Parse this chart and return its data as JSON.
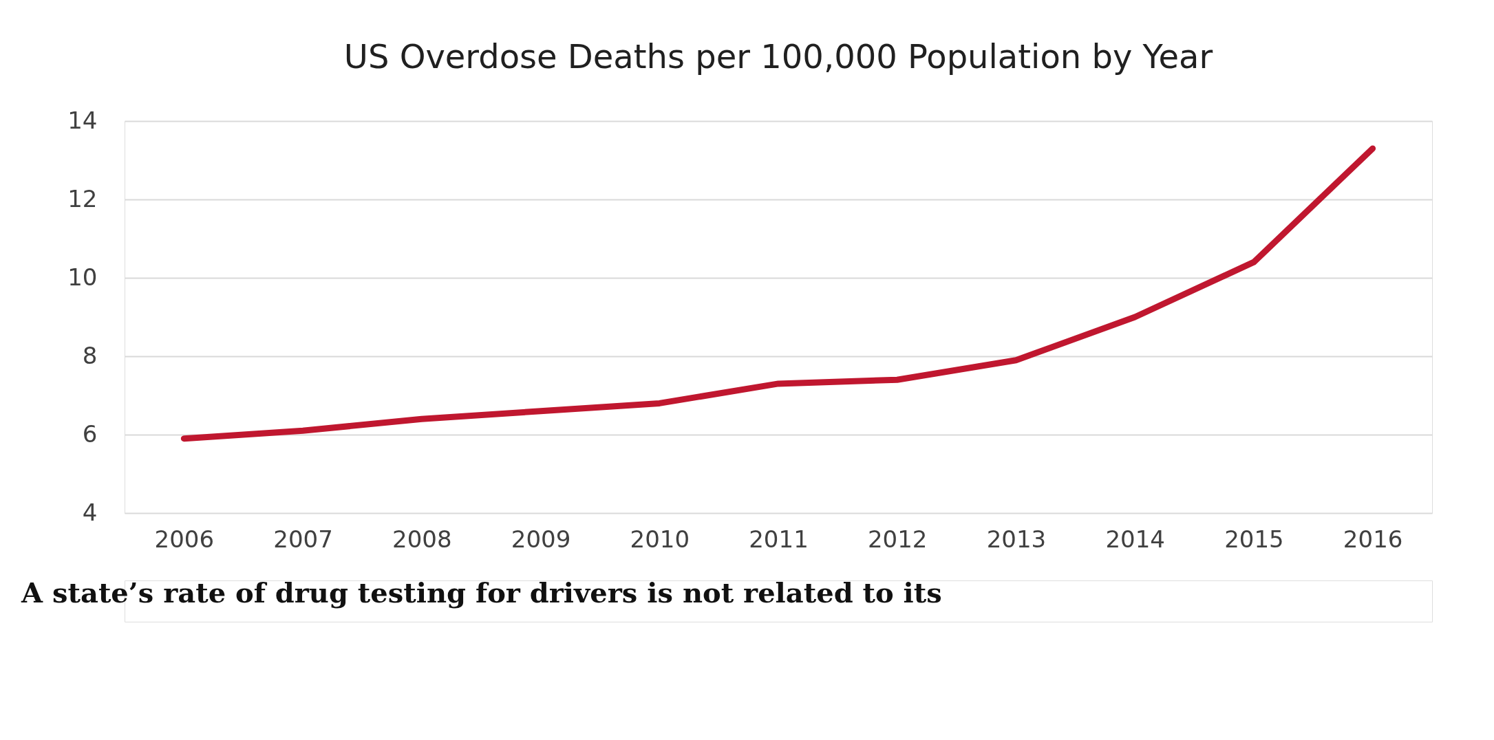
{
  "chart_data": {
    "type": "line",
    "title": "US Overdose Deaths per 100,000 Population by Year",
    "categories": [
      "2006",
      "2007",
      "2008",
      "2009",
      "2010",
      "2011",
      "2012",
      "2013",
      "2014",
      "2015",
      "2016"
    ],
    "series": [
      {
        "color": "#c0172f",
        "values": [
          5.9,
          6.1,
          6.4,
          6.6,
          6.8,
          7.3,
          7.4,
          7.9,
          9.0,
          10.4,
          13.3
        ]
      }
    ],
    "ylim": [
      4,
      14
    ],
    "yticks": [
      4,
      6,
      8,
      10,
      12,
      14
    ],
    "grid": "y",
    "marker": "none",
    "line_style": "solid",
    "annotations": [
      "A state’s rate of drug testing for drivers is not related to its"
    ]
  }
}
